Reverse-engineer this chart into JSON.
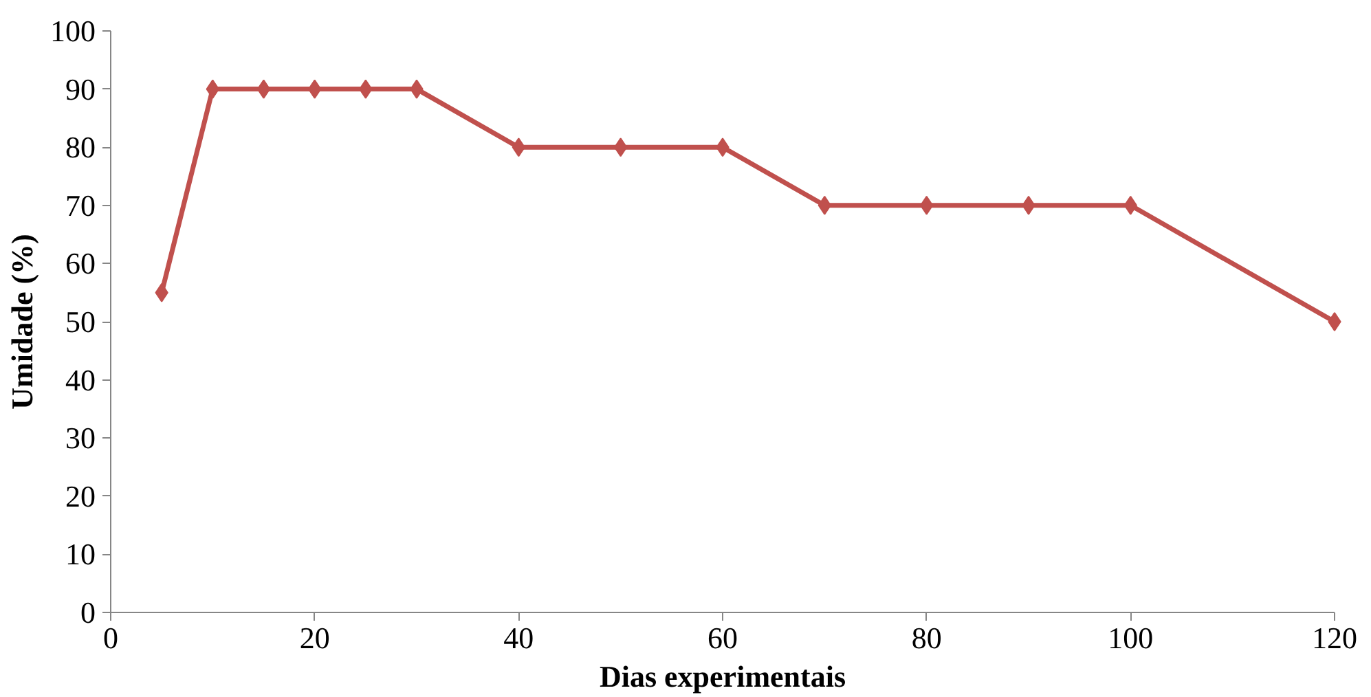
{
  "chart_data": {
    "type": "line",
    "xlabel": "Dias experimentais",
    "ylabel": "Umidade (%)",
    "x": [
      5,
      10,
      15,
      20,
      25,
      30,
      40,
      50,
      60,
      70,
      80,
      90,
      100,
      120
    ],
    "series": [
      {
        "color": "#c0504d",
        "values": [
          55,
          90,
          90,
          90,
          90,
          90,
          80,
          80,
          80,
          70,
          70,
          70,
          70,
          50
        ]
      }
    ],
    "xlim": [
      0,
      120
    ],
    "xticks": [
      0,
      20,
      40,
      60,
      80,
      100,
      120
    ],
    "ylim": [
      0,
      100
    ],
    "yticks": [
      0,
      10,
      20,
      30,
      40,
      50,
      60,
      70,
      80,
      90,
      100
    ],
    "grid": false,
    "marker": "diamond",
    "line_style": "solid"
  }
}
